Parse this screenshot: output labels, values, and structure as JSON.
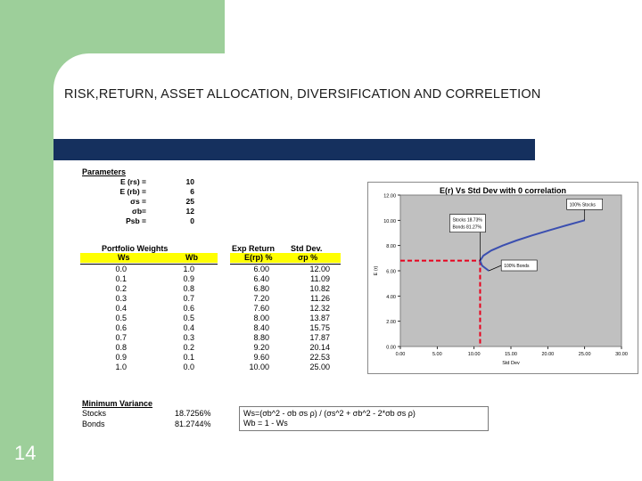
{
  "slide": {
    "title": "RISK,RETURN, ASSET ALLOCATION, DIVERSIFICATION AND CORRELETION",
    "page_number": "14"
  },
  "parameters": {
    "heading": "Parameters",
    "rows": [
      {
        "label": "E (rs) =",
        "value": "10"
      },
      {
        "label": "E (rb) =",
        "value": "6"
      },
      {
        "label": "σs =",
        "value": "25"
      },
      {
        "label": "σb=",
        "value": "12"
      },
      {
        "label": "Psb =",
        "value": "0"
      }
    ]
  },
  "table": {
    "group_heads": {
      "weights": "Portfolio Weights",
      "returns": "Exp Return",
      "std": "Std Dev."
    },
    "col_heads": [
      "Ws",
      "Wb",
      "E(rp) %",
      "σp %"
    ],
    "rows": [
      [
        "0.0",
        "1.0",
        "6.00",
        "12.00"
      ],
      [
        "0.1",
        "0.9",
        "6.40",
        "11.09"
      ],
      [
        "0.2",
        "0.8",
        "6.80",
        "10.82"
      ],
      [
        "0.3",
        "0.7",
        "7.20",
        "11.26"
      ],
      [
        "0.4",
        "0.6",
        "7.60",
        "12.32"
      ],
      [
        "0.5",
        "0.5",
        "8.00",
        "13.87"
      ],
      [
        "0.6",
        "0.4",
        "8.40",
        "15.75"
      ],
      [
        "0.7",
        "0.3",
        "8.80",
        "17.87"
      ],
      [
        "0.8",
        "0.2",
        "9.20",
        "20.14"
      ],
      [
        "0.9",
        "0.1",
        "9.60",
        "22.53"
      ],
      [
        "1.0",
        "0.0",
        "10.00",
        "25.00"
      ]
    ]
  },
  "min_variance": {
    "heading": "Minimum Variance",
    "stocks_label": "Stocks",
    "stocks_value": "18.7256%",
    "bonds_label": "Bonds",
    "bonds_value": "81.2744%",
    "formula1": "Ws=(σb^2 - σb σs ρ) / (σs^2 + σb^2 - 2*σb σs ρ)",
    "formula2": "Wb = 1 - Ws"
  },
  "chart_data": {
    "type": "line",
    "title": "E(r) Vs Std Dev with 0 correlation",
    "xlabel": "Std Dev",
    "ylabel": "E (r)",
    "xlim": [
      0,
      30
    ],
    "ylim": [
      0,
      12
    ],
    "x_ticks": [
      "0.00",
      "5.00",
      "10.00",
      "15.00",
      "20.00",
      "25.00",
      "30.00"
    ],
    "y_ticks": [
      "0.00",
      "2.00",
      "4.00",
      "6.00",
      "8.00",
      "10.00",
      "12.00"
    ],
    "series": [
      {
        "x": [
          12.0,
          11.09,
          10.82,
          11.26,
          12.32,
          13.87,
          15.75,
          17.87,
          20.14,
          22.53,
          25.0
        ],
        "y": [
          6.0,
          6.4,
          6.8,
          7.2,
          7.6,
          8.0,
          8.4,
          8.8,
          9.2,
          9.6,
          10.0
        ],
        "color": "#3b4fb0"
      }
    ],
    "annotations": [
      {
        "text": "100% Stocks",
        "x": 25.0,
        "y": 10.0
      },
      {
        "text": "100% Bonds",
        "x": 12.0,
        "y": 6.0
      },
      {
        "lines": [
          "Stocks 18.73%",
          "Bonds 81.27%"
        ],
        "x": 10.82,
        "y": 6.8
      }
    ],
    "highlight": {
      "x": 10.82,
      "y": 6.8,
      "color": "#e8001c"
    },
    "background": "#c0c0c0",
    "grid": false
  }
}
